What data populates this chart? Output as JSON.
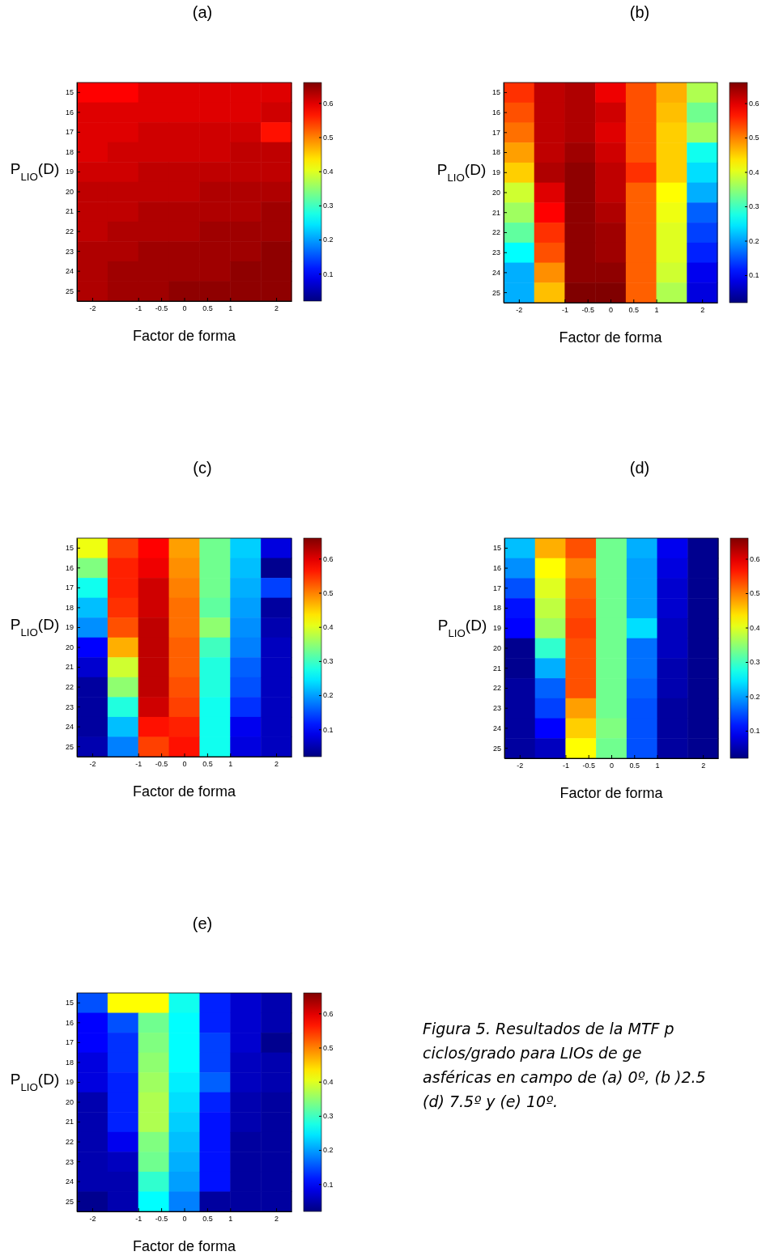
{
  "chart_data": [
    {
      "type": "heatmap",
      "title": "(a)",
      "xlabel": "Factor de forma",
      "ylabel": "P$_{LIO}$(D)",
      "x": [
        -2,
        -1.333,
        -0.667,
        0,
        0.667,
        1.333,
        2
      ],
      "xlim": [
        -2.333,
        2.333
      ],
      "xticks": [
        -2,
        -1,
        -0.5,
        0,
        0.5,
        1,
        2
      ],
      "y_categories": [
        "15",
        "16",
        "17",
        "18",
        "19",
        "20",
        "21",
        "22",
        "23",
        "24",
        "25"
      ],
      "clim": [
        0.02,
        0.66
      ],
      "cticks": [
        0.1,
        0.2,
        0.3,
        0.4,
        0.5,
        0.6
      ],
      "cells": [
        [
          0.58,
          0.58,
          0.6,
          0.6,
          0.6,
          0.6,
          0.6
        ],
        [
          0.6,
          0.6,
          0.6,
          0.6,
          0.6,
          0.6,
          0.61
        ],
        [
          0.6,
          0.6,
          0.61,
          0.61,
          0.61,
          0.61,
          0.57
        ],
        [
          0.6,
          0.61,
          0.61,
          0.61,
          0.61,
          0.62,
          0.62
        ],
        [
          0.61,
          0.61,
          0.62,
          0.62,
          0.62,
          0.62,
          0.62
        ],
        [
          0.62,
          0.62,
          0.62,
          0.62,
          0.63,
          0.63,
          0.63
        ],
        [
          0.62,
          0.62,
          0.63,
          0.63,
          0.63,
          0.63,
          0.64
        ],
        [
          0.62,
          0.63,
          0.63,
          0.63,
          0.64,
          0.64,
          0.64
        ],
        [
          0.63,
          0.63,
          0.64,
          0.64,
          0.64,
          0.64,
          0.65
        ],
        [
          0.63,
          0.64,
          0.64,
          0.64,
          0.64,
          0.65,
          0.65
        ],
        [
          0.63,
          0.64,
          0.64,
          0.65,
          0.65,
          0.65,
          0.65
        ]
      ]
    },
    {
      "type": "heatmap",
      "title": "(b)",
      "xlabel": "Factor de forma",
      "ylabel": "P$_{LIO}$(D)",
      "x": [
        -2,
        -1.333,
        -0.667,
        0,
        0.667,
        1.333,
        2
      ],
      "xlim": [
        -2.333,
        2.333
      ],
      "xticks": [
        -2,
        -1,
        -0.5,
        0,
        0.5,
        1,
        2
      ],
      "y_categories": [
        "15",
        "16",
        "17",
        "18",
        "19",
        "20",
        "21",
        "22",
        "23",
        "24",
        "25"
      ],
      "clim": [
        0.02,
        0.66
      ],
      "cticks": [
        0.1,
        0.2,
        0.3,
        0.4,
        0.5,
        0.6
      ],
      "cells": [
        [
          0.55,
          0.62,
          0.63,
          0.59,
          0.53,
          0.47,
          0.37
        ],
        [
          0.53,
          0.62,
          0.63,
          0.61,
          0.53,
          0.46,
          0.33
        ],
        [
          0.51,
          0.62,
          0.63,
          0.6,
          0.53,
          0.45,
          0.36
        ],
        [
          0.48,
          0.62,
          0.64,
          0.61,
          0.53,
          0.45,
          0.27
        ],
        [
          0.45,
          0.63,
          0.65,
          0.62,
          0.55,
          0.45,
          0.24
        ],
        [
          0.39,
          0.6,
          0.65,
          0.62,
          0.52,
          0.42,
          0.21
        ],
        [
          0.36,
          0.58,
          0.65,
          0.63,
          0.52,
          0.41,
          0.16
        ],
        [
          0.32,
          0.55,
          0.65,
          0.64,
          0.52,
          0.4,
          0.14
        ],
        [
          0.26,
          0.53,
          0.65,
          0.64,
          0.52,
          0.4,
          0.12
        ],
        [
          0.21,
          0.49,
          0.65,
          0.65,
          0.52,
          0.39,
          0.09
        ],
        [
          0.21,
          0.46,
          0.66,
          0.66,
          0.52,
          0.37,
          0.08
        ]
      ]
    },
    {
      "type": "heatmap",
      "title": "(c)",
      "xlabel": "Factor de forma",
      "ylabel": "P$_{LIO}$(D)",
      "x": [
        -2,
        -1.333,
        -0.667,
        0,
        0.667,
        1.333,
        2
      ],
      "xlim": [
        -2.333,
        2.333
      ],
      "xticks": [
        -2,
        -1,
        -0.5,
        0,
        0.5,
        1,
        2
      ],
      "y_categories": [
        "15",
        "16",
        "17",
        "18",
        "19",
        "20",
        "21",
        "22",
        "23",
        "24",
        "25"
      ],
      "clim": [
        0.02,
        0.66
      ],
      "cticks": [
        0.1,
        0.2,
        0.3,
        0.4,
        0.5,
        0.6
      ],
      "cells": [
        [
          0.41,
          0.54,
          0.58,
          0.48,
          0.33,
          0.23,
          0.08
        ],
        [
          0.34,
          0.56,
          0.59,
          0.49,
          0.33,
          0.22,
          0.03
        ],
        [
          0.27,
          0.56,
          0.61,
          0.5,
          0.33,
          0.21,
          0.14
        ],
        [
          0.22,
          0.55,
          0.61,
          0.51,
          0.32,
          0.2,
          0.04
        ],
        [
          0.19,
          0.53,
          0.62,
          0.51,
          0.35,
          0.19,
          0.05
        ],
        [
          0.1,
          0.47,
          0.62,
          0.52,
          0.3,
          0.18,
          0.06
        ],
        [
          0.07,
          0.39,
          0.62,
          0.52,
          0.28,
          0.16,
          0.06
        ],
        [
          0.04,
          0.35,
          0.62,
          0.53,
          0.28,
          0.15,
          0.06
        ],
        [
          0.04,
          0.28,
          0.61,
          0.54,
          0.27,
          0.13,
          0.06
        ],
        [
          0.04,
          0.22,
          0.57,
          0.56,
          0.27,
          0.09,
          0.06
        ],
        [
          0.05,
          0.18,
          0.54,
          0.57,
          0.27,
          0.08,
          0.06
        ]
      ]
    },
    {
      "type": "heatmap",
      "title": "(d)",
      "xlabel": "Factor de forma",
      "ylabel": "P$_{LIO}$(D)",
      "x": [
        -2,
        -1.333,
        -0.667,
        0,
        0.667,
        1.333,
        2
      ],
      "xlim": [
        -2.333,
        2.333
      ],
      "xticks": [
        -2,
        -1,
        -0.5,
        0,
        0.5,
        1,
        2
      ],
      "y_categories": [
        "15",
        "16",
        "17",
        "18",
        "19",
        "20",
        "21",
        "22",
        "23",
        "24",
        "25"
      ],
      "clim": [
        0.02,
        0.66
      ],
      "cticks": [
        0.1,
        0.2,
        0.3,
        0.4,
        0.5,
        0.6
      ],
      "cells": [
        [
          0.22,
          0.47,
          0.53,
          0.33,
          0.21,
          0.09,
          0.03
        ],
        [
          0.19,
          0.42,
          0.5,
          0.33,
          0.2,
          0.08,
          0.03
        ],
        [
          0.15,
          0.4,
          0.52,
          0.33,
          0.2,
          0.07,
          0.03
        ],
        [
          0.11,
          0.38,
          0.53,
          0.33,
          0.2,
          0.07,
          0.03
        ],
        [
          0.1,
          0.36,
          0.54,
          0.33,
          0.24,
          0.06,
          0.03
        ],
        [
          0.03,
          0.29,
          0.53,
          0.33,
          0.17,
          0.06,
          0.03
        ],
        [
          0.03,
          0.21,
          0.53,
          0.33,
          0.17,
          0.05,
          0.03
        ],
        [
          0.04,
          0.16,
          0.53,
          0.33,
          0.16,
          0.05,
          0.03
        ],
        [
          0.04,
          0.14,
          0.48,
          0.33,
          0.15,
          0.04,
          0.03
        ],
        [
          0.04,
          0.1,
          0.45,
          0.34,
          0.15,
          0.04,
          0.03
        ],
        [
          0.04,
          0.06,
          0.42,
          0.33,
          0.15,
          0.04,
          0.03
        ]
      ]
    },
    {
      "type": "heatmap",
      "title": "(e)",
      "xlabel": "Factor de forma",
      "ylabel": "P$_{LIO}$(D)",
      "x": [
        -2,
        -1.333,
        -0.667,
        0,
        0.667,
        1.333,
        2
      ],
      "xlim": [
        -2.333,
        2.333
      ],
      "xticks": [
        -2,
        -1,
        -0.5,
        0,
        0.5,
        1,
        2
      ],
      "y_categories": [
        "15",
        "16",
        "17",
        "18",
        "19",
        "20",
        "21",
        "22",
        "23",
        "24",
        "25"
      ],
      "clim": [
        0.02,
        0.66
      ],
      "cticks": [
        0.1,
        0.2,
        0.3,
        0.4,
        0.5,
        0.6
      ],
      "cells": [
        [
          0.15,
          0.42,
          0.42,
          0.27,
          0.12,
          0.07,
          0.05
        ],
        [
          0.1,
          0.15,
          0.33,
          0.26,
          0.12,
          0.07,
          0.05
        ],
        [
          0.1,
          0.13,
          0.34,
          0.26,
          0.14,
          0.07,
          0.03
        ],
        [
          0.08,
          0.13,
          0.35,
          0.26,
          0.14,
          0.06,
          0.05
        ],
        [
          0.08,
          0.12,
          0.36,
          0.25,
          0.16,
          0.06,
          0.05
        ],
        [
          0.05,
          0.12,
          0.37,
          0.24,
          0.12,
          0.05,
          0.04
        ],
        [
          0.05,
          0.12,
          0.37,
          0.23,
          0.11,
          0.05,
          0.04
        ],
        [
          0.05,
          0.09,
          0.34,
          0.22,
          0.11,
          0.04,
          0.04
        ],
        [
          0.05,
          0.06,
          0.33,
          0.21,
          0.11,
          0.04,
          0.04
        ],
        [
          0.05,
          0.05,
          0.29,
          0.2,
          0.11,
          0.04,
          0.04
        ],
        [
          0.03,
          0.05,
          0.26,
          0.18,
          0.04,
          0.04,
          0.04
        ]
      ]
    },
    {
      "type": "other",
      "annotations": [
        "Figura 5. Resultados de la MTF p",
        "ciclos/grado para LIOs de ge",
        "asféricas en campo de (a) 0º, (b )2.5",
        "(d) 7.5º y (e) 10º."
      ]
    }
  ]
}
